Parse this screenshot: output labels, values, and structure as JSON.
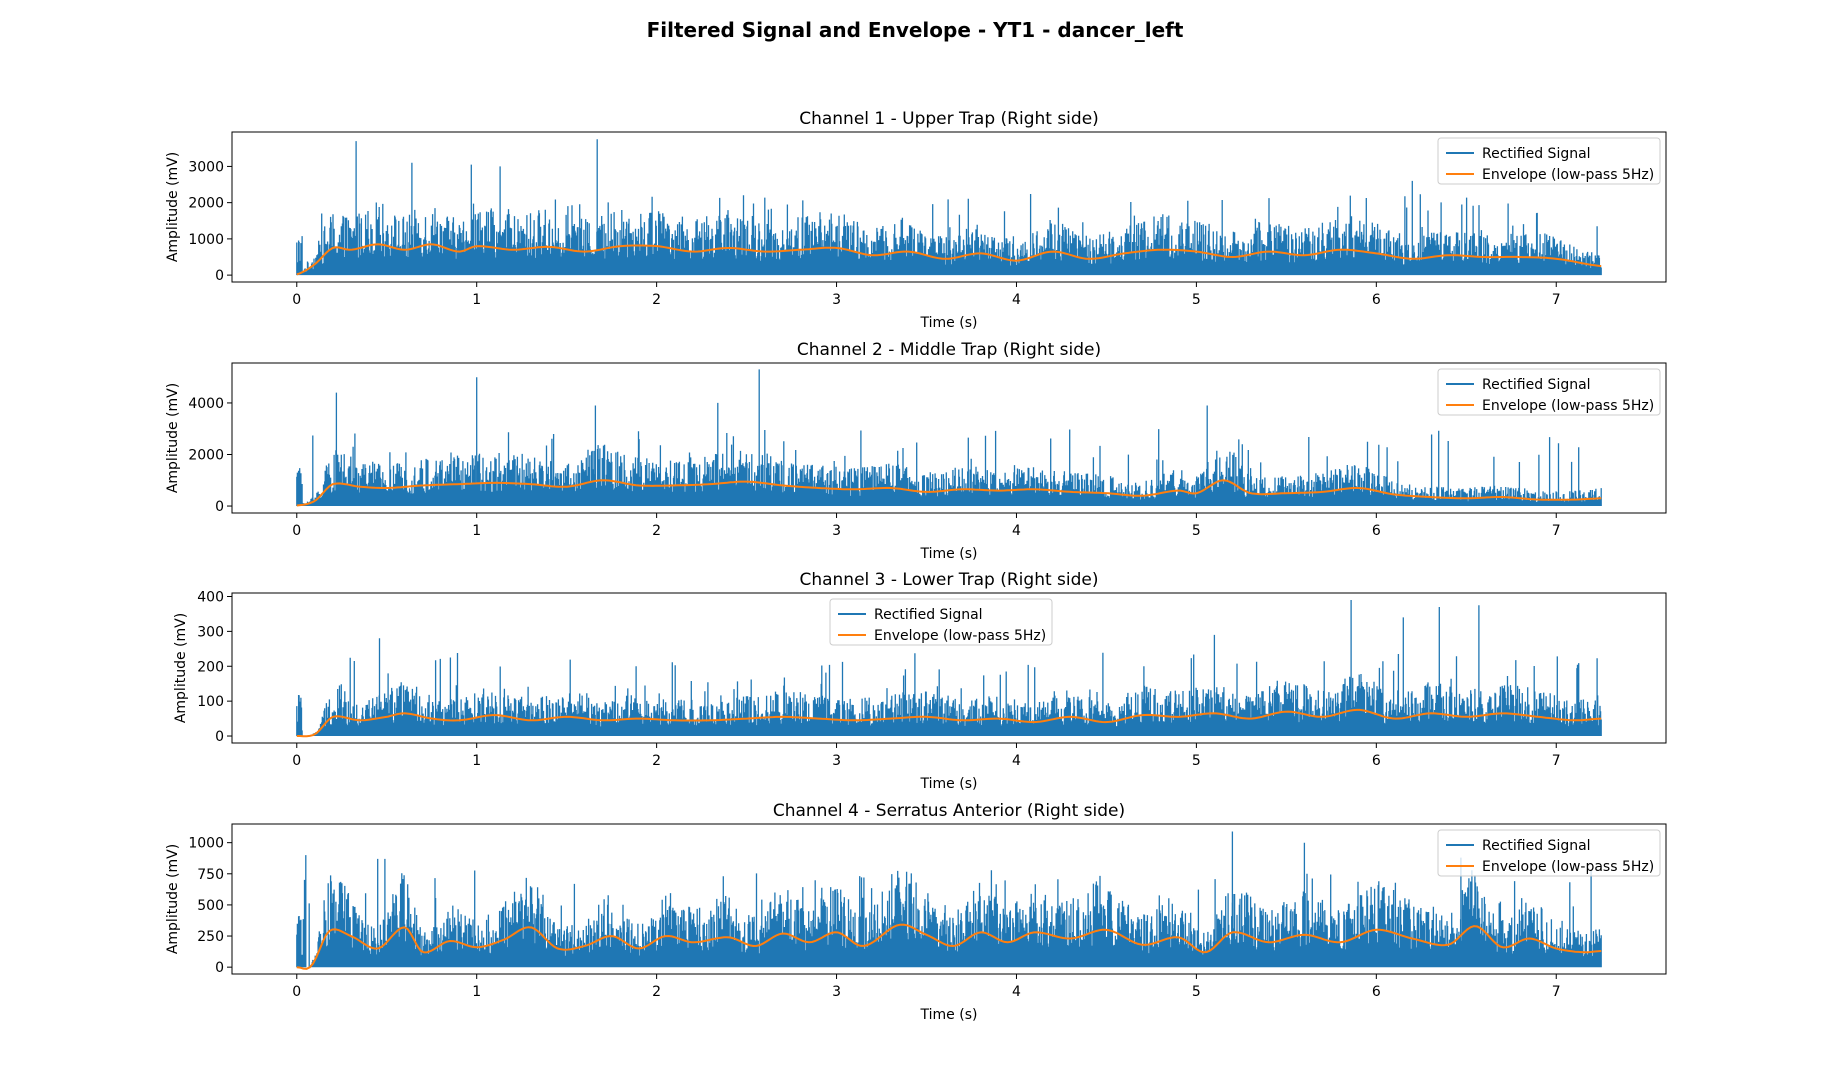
{
  "figure": {
    "title": "Filtered Signal and Envelope - YT1 - dancer_left"
  },
  "colors": {
    "signal": "#1f77b4",
    "envelope": "#ff7f0e"
  },
  "chart_data": [
    {
      "type": "line",
      "title": "Channel 1 - Upper Trap (Right side)",
      "xlabel": "Time (s)",
      "ylabel": "Amplitude (mV)",
      "xlim": [
        -0.36,
        7.61
      ],
      "ylim": [
        -190,
        3950
      ],
      "xticks": [
        0,
        1,
        2,
        3,
        4,
        5,
        6,
        7
      ],
      "yticks": [
        0,
        1000,
        2000,
        3000
      ],
      "legend_position": "upper-right",
      "series": [
        {
          "name": "Rectified Signal",
          "typical_peak": 1500,
          "max_peak": 3750,
          "spikes": [
            [
              0.33,
              3700
            ],
            [
              1.67,
              3750
            ],
            [
              0.64,
              3100
            ],
            [
              0.97,
              3050
            ],
            [
              1.13,
              3000
            ],
            [
              6.2,
              2600
            ]
          ]
        },
        {
          "name": "Envelope (low-pass 5Hz)",
          "points": [
            [
              0,
              20
            ],
            [
              0.1,
              300
            ],
            [
              0.2,
              750
            ],
            [
              0.3,
              700
            ],
            [
              0.45,
              850
            ],
            [
              0.6,
              700
            ],
            [
              0.75,
              850
            ],
            [
              0.9,
              650
            ],
            [
              1.0,
              800
            ],
            [
              1.2,
              700
            ],
            [
              1.4,
              780
            ],
            [
              1.6,
              650
            ],
            [
              1.8,
              800
            ],
            [
              2.0,
              800
            ],
            [
              2.2,
              650
            ],
            [
              2.4,
              750
            ],
            [
              2.6,
              650
            ],
            [
              2.8,
              700
            ],
            [
              3.0,
              750
            ],
            [
              3.2,
              550
            ],
            [
              3.4,
              650
            ],
            [
              3.6,
              450
            ],
            [
              3.8,
              600
            ],
            [
              4.0,
              400
            ],
            [
              4.2,
              650
            ],
            [
              4.4,
              450
            ],
            [
              4.6,
              600
            ],
            [
              4.8,
              700
            ],
            [
              5.0,
              650
            ],
            [
              5.2,
              500
            ],
            [
              5.4,
              650
            ],
            [
              5.6,
              550
            ],
            [
              5.8,
              700
            ],
            [
              6.0,
              600
            ],
            [
              6.2,
              450
            ],
            [
              6.4,
              550
            ],
            [
              6.6,
              500
            ],
            [
              6.8,
              500
            ],
            [
              7.0,
              450
            ],
            [
              7.25,
              250
            ]
          ]
        }
      ]
    },
    {
      "type": "line",
      "title": "Channel 2 - Middle Trap (Right side)",
      "xlabel": "Time (s)",
      "ylabel": "Amplitude (mV)",
      "xlim": [
        -0.36,
        7.61
      ],
      "ylim": [
        -270,
        5550
      ],
      "xticks": [
        0,
        1,
        2,
        3,
        4,
        5,
        6,
        7
      ],
      "yticks": [
        0,
        2000,
        4000
      ],
      "legend_position": "upper-right",
      "series": [
        {
          "name": "Rectified Signal",
          "typical_peak": 2000,
          "max_peak": 5300,
          "spikes": [
            [
              2.57,
              5300
            ],
            [
              1.0,
              5000
            ],
            [
              0.22,
              4400
            ],
            [
              5.06,
              3900
            ],
            [
              2.34,
              4000
            ],
            [
              1.66,
              3900
            ]
          ]
        },
        {
          "name": "Envelope (low-pass 5Hz)",
          "points": [
            [
              0,
              20
            ],
            [
              0.1,
              200
            ],
            [
              0.2,
              850
            ],
            [
              0.35,
              750
            ],
            [
              0.5,
              700
            ],
            [
              0.7,
              800
            ],
            [
              0.9,
              850
            ],
            [
              1.1,
              900
            ],
            [
              1.3,
              850
            ],
            [
              1.5,
              750
            ],
            [
              1.7,
              1000
            ],
            [
              1.9,
              800
            ],
            [
              2.1,
              800
            ],
            [
              2.3,
              850
            ],
            [
              2.5,
              950
            ],
            [
              2.7,
              800
            ],
            [
              2.9,
              700
            ],
            [
              3.1,
              650
            ],
            [
              3.3,
              700
            ],
            [
              3.5,
              550
            ],
            [
              3.7,
              650
            ],
            [
              3.9,
              600
            ],
            [
              4.1,
              650
            ],
            [
              4.3,
              550
            ],
            [
              4.5,
              500
            ],
            [
              4.7,
              400
            ],
            [
              4.9,
              600
            ],
            [
              5.0,
              500
            ],
            [
              5.15,
              1000
            ],
            [
              5.3,
              500
            ],
            [
              5.5,
              500
            ],
            [
              5.7,
              550
            ],
            [
              5.9,
              700
            ],
            [
              6.1,
              450
            ],
            [
              6.3,
              350
            ],
            [
              6.5,
              300
            ],
            [
              6.7,
              350
            ],
            [
              6.9,
              250
            ],
            [
              7.1,
              250
            ],
            [
              7.25,
              300
            ]
          ]
        }
      ]
    },
    {
      "type": "line",
      "title": "Channel 3 - Lower Trap (Right side)",
      "xlabel": "Time (s)",
      "ylabel": "Amplitude (mV)",
      "xlim": [
        -0.36,
        7.61
      ],
      "ylim": [
        -20,
        410
      ],
      "xticks": [
        0,
        1,
        2,
        3,
        4,
        5,
        6,
        7
      ],
      "yticks": [
        0,
        100,
        200,
        300,
        400
      ],
      "legend_position": "upper-center",
      "series": [
        {
          "name": "Rectified Signal",
          "typical_peak": 160,
          "max_peak": 390,
          "spikes": [
            [
              5.86,
              390
            ],
            [
              6.57,
              375
            ],
            [
              6.35,
              370
            ],
            [
              5.1,
              290
            ],
            [
              0.46,
              280
            ],
            [
              6.15,
              340
            ]
          ]
        },
        {
          "name": "Envelope (low-pass 5Hz)",
          "points": [
            [
              0,
              0
            ],
            [
              0.1,
              5
            ],
            [
              0.2,
              55
            ],
            [
              0.35,
              45
            ],
            [
              0.5,
              55
            ],
            [
              0.6,
              65
            ],
            [
              0.75,
              50
            ],
            [
              0.9,
              45
            ],
            [
              1.1,
              60
            ],
            [
              1.3,
              45
            ],
            [
              1.5,
              55
            ],
            [
              1.7,
              45
            ],
            [
              1.9,
              50
            ],
            [
              2.1,
              45
            ],
            [
              2.3,
              45
            ],
            [
              2.5,
              50
            ],
            [
              2.7,
              55
            ],
            [
              2.9,
              50
            ],
            [
              3.1,
              45
            ],
            [
              3.3,
              50
            ],
            [
              3.5,
              55
            ],
            [
              3.7,
              45
            ],
            [
              3.9,
              50
            ],
            [
              4.1,
              40
            ],
            [
              4.3,
              55
            ],
            [
              4.5,
              40
            ],
            [
              4.7,
              60
            ],
            [
              4.9,
              55
            ],
            [
              5.1,
              65
            ],
            [
              5.3,
              50
            ],
            [
              5.5,
              70
            ],
            [
              5.7,
              55
            ],
            [
              5.9,
              75
            ],
            [
              6.1,
              50
            ],
            [
              6.3,
              65
            ],
            [
              6.5,
              55
            ],
            [
              6.7,
              65
            ],
            [
              6.9,
              55
            ],
            [
              7.1,
              45
            ],
            [
              7.25,
              50
            ]
          ]
        }
      ]
    },
    {
      "type": "line",
      "title": "Channel 4 - Serratus Anterior (Right side)",
      "xlabel": "Time (s)",
      "ylabel": "Amplitude (mV)",
      "xlim": [
        -0.36,
        7.61
      ],
      "ylim": [
        -55,
        1150
      ],
      "xticks": [
        0,
        1,
        2,
        3,
        4,
        5,
        6,
        7
      ],
      "yticks": [
        0,
        250,
        500,
        750,
        1000
      ],
      "legend_position": "upper-right",
      "series": [
        {
          "name": "Rectified Signal",
          "typical_peak": 520,
          "max_peak": 1090,
          "spikes": [
            [
              5.2,
              1090
            ],
            [
              0.05,
              900
            ],
            [
              0.45,
              870
            ],
            [
              0.49,
              870
            ],
            [
              5.6,
              1000
            ],
            [
              6.47,
              880
            ]
          ]
        },
        {
          "name": "Envelope (low-pass 5Hz)",
          "points": [
            [
              0,
              0
            ],
            [
              0.08,
              10
            ],
            [
              0.18,
              290
            ],
            [
              0.3,
              250
            ],
            [
              0.45,
              150
            ],
            [
              0.6,
              320
            ],
            [
              0.7,
              120
            ],
            [
              0.85,
              210
            ],
            [
              1.0,
              160
            ],
            [
              1.15,
              220
            ],
            [
              1.3,
              320
            ],
            [
              1.45,
              150
            ],
            [
              1.6,
              170
            ],
            [
              1.75,
              250
            ],
            [
              1.9,
              150
            ],
            [
              2.05,
              250
            ],
            [
              2.2,
              200
            ],
            [
              2.4,
              240
            ],
            [
              2.55,
              170
            ],
            [
              2.7,
              270
            ],
            [
              2.85,
              200
            ],
            [
              3.0,
              280
            ],
            [
              3.15,
              170
            ],
            [
              3.35,
              340
            ],
            [
              3.5,
              260
            ],
            [
              3.65,
              170
            ],
            [
              3.8,
              280
            ],
            [
              3.95,
              200
            ],
            [
              4.1,
              280
            ],
            [
              4.3,
              230
            ],
            [
              4.5,
              300
            ],
            [
              4.7,
              180
            ],
            [
              4.9,
              240
            ],
            [
              5.05,
              120
            ],
            [
              5.2,
              280
            ],
            [
              5.4,
              200
            ],
            [
              5.6,
              260
            ],
            [
              5.8,
              200
            ],
            [
              6.0,
              300
            ],
            [
              6.2,
              230
            ],
            [
              6.4,
              180
            ],
            [
              6.55,
              330
            ],
            [
              6.7,
              160
            ],
            [
              6.85,
              230
            ],
            [
              7.0,
              150
            ],
            [
              7.15,
              120
            ],
            [
              7.25,
              130
            ]
          ]
        }
      ]
    }
  ]
}
